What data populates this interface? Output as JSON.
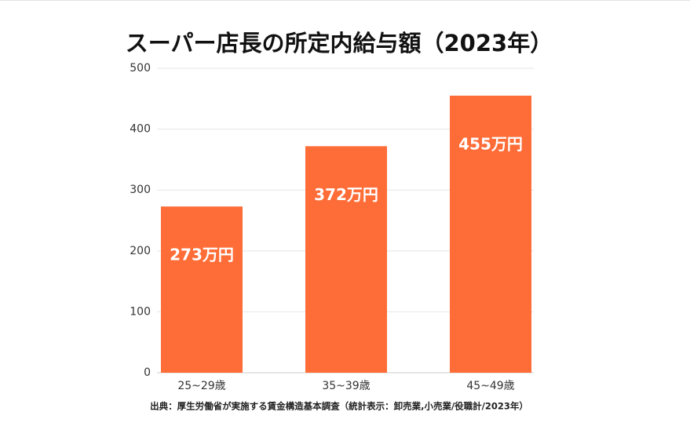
{
  "chart_data": {
    "type": "bar",
    "title": "スーパー店長の所定内給与額（2023年）",
    "categories": [
      "25~29歳",
      "35~39歳",
      "45~49歳"
    ],
    "values": [
      273,
      372,
      455
    ],
    "value_labels": [
      "273万円",
      "372万円",
      "455万円"
    ],
    "color": "#fe6c37",
    "ylim": [
      0,
      500
    ],
    "yticks": [
      0,
      100,
      200,
      300,
      400,
      500
    ],
    "grid": true,
    "source": "出典：厚生労働省が実施する賃金構造基本調査（統計表示：卸売業,小売業/役職計/2023年）"
  }
}
